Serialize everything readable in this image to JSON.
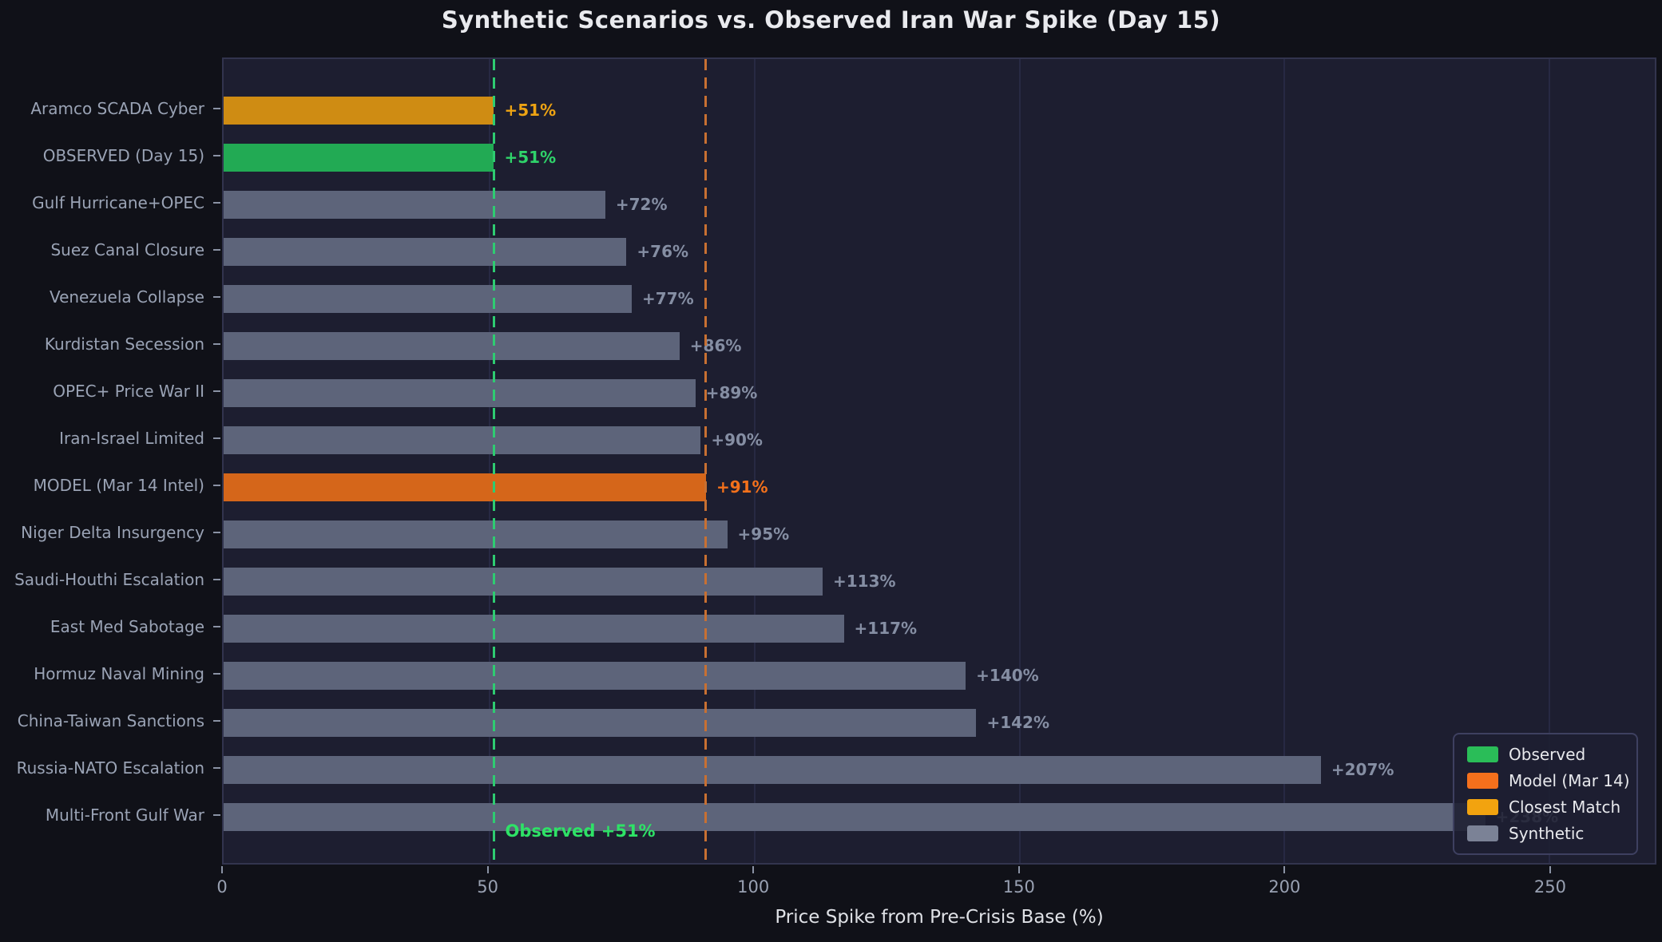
{
  "title": "Synthetic Scenarios vs. Observed Iran War Spike (Day 15)",
  "colors": {
    "page_bg": "#101118",
    "plot_bg": "#1d1e30",
    "grid": "#272943",
    "spine": "#32344e",
    "bar_synthetic": "#5d647a",
    "bar_observed": "#22aa54",
    "bar_model": "#d5661a",
    "bar_closest": "#cf8c13",
    "label_synthetic": "#858ea3",
    "label_observed": "#2fd36a",
    "label_model": "#f4711b",
    "label_closest": "#eda313",
    "legend_observed": "#2abd58",
    "legend_model": "#f5701c",
    "legend_closest": "#f2a30f",
    "legend_synthetic": "#7b8296",
    "line_observed": "#2ecc71",
    "line_model": "#c87032",
    "annotation": "#2ee266"
  },
  "chart_data": {
    "type": "bar",
    "orientation": "horizontal",
    "title": "Synthetic Scenarios vs. Observed Iran War Spike (Day 15)",
    "xlabel": "Price Spike from Pre-Crisis Base (%)",
    "xlim": [
      0,
      270
    ],
    "xticks": [
      0,
      50,
      100,
      150,
      200,
      250
    ],
    "grid": "vertical-faint",
    "categories": [
      "Aramco SCADA Cyber",
      "OBSERVED (Day 15)",
      "Gulf Hurricane+OPEC",
      "Suez Canal Closure",
      "Venezuela Collapse",
      "Kurdistan Secession",
      "OPEC+ Price War II",
      "Iran-Israel Limited",
      "MODEL (Mar 14 Intel)",
      "Niger Delta Insurgency",
      "Saudi-Houthi Escalation",
      "East Med Sabotage",
      "Hormuz Naval Mining",
      "China-Taiwan Sanctions",
      "Russia-NATO Escalation",
      "Multi-Front Gulf War"
    ],
    "values": [
      51,
      51,
      72,
      76,
      77,
      86,
      89,
      90,
      91,
      95,
      113,
      117,
      140,
      142,
      207,
      238
    ],
    "value_labels": [
      "+51%",
      "+51%",
      "+72%",
      "+76%",
      "+77%",
      "+86%",
      "+89%",
      "+90%",
      "+91%",
      "+95%",
      "+113%",
      "+117%",
      "+140%",
      "+142%",
      "+207%",
      "+238%"
    ],
    "bar_styles": [
      "closest",
      "observed",
      "synthetic",
      "synthetic",
      "synthetic",
      "synthetic",
      "synthetic",
      "synthetic",
      "model",
      "synthetic",
      "synthetic",
      "synthetic",
      "synthetic",
      "synthetic",
      "synthetic",
      "synthetic"
    ],
    "reference_lines": [
      {
        "x": 51,
        "style": "dashed",
        "color_key": "line_observed"
      },
      {
        "x": 91,
        "style": "dashed",
        "color_key": "line_model"
      }
    ],
    "annotation": {
      "text": "Observed +51%",
      "x": 51
    },
    "legend_position": "lower right",
    "legend": [
      {
        "label": "Observed",
        "color_key": "legend_observed"
      },
      {
        "label": "Model (Mar 14)",
        "color_key": "legend_model"
      },
      {
        "label": "Closest Match",
        "color_key": "legend_closest"
      },
      {
        "label": "Synthetic",
        "color_key": "legend_synthetic"
      }
    ]
  }
}
